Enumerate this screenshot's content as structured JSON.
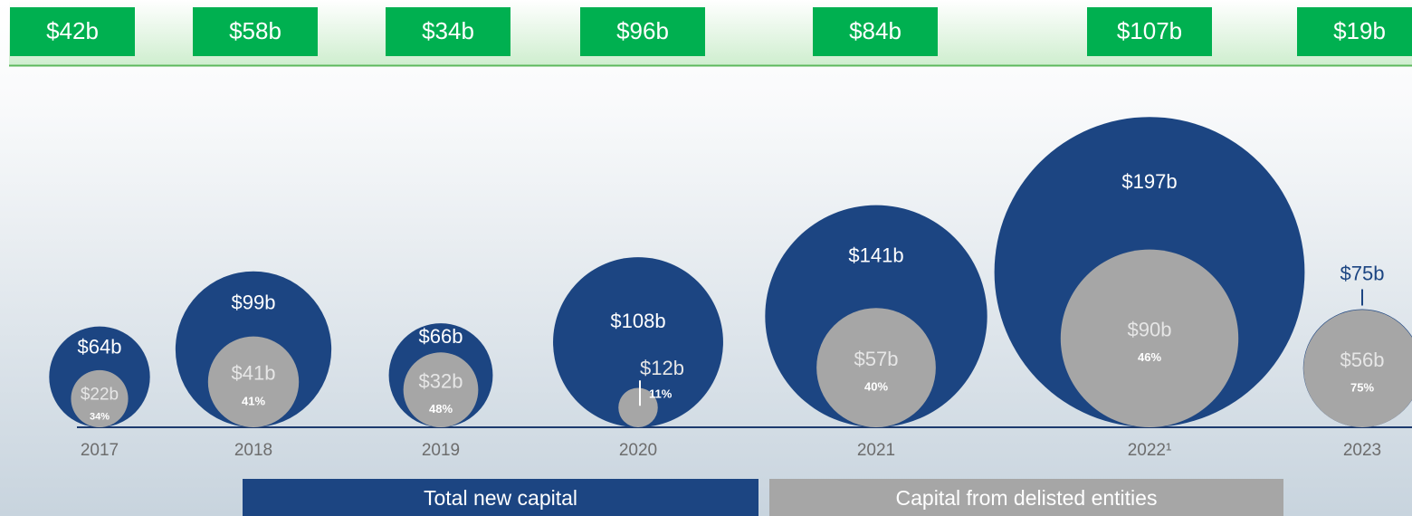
{
  "chart_data": {
    "type": "bubble",
    "categories": [
      "2017",
      "2018",
      "2019",
      "2020",
      "2021",
      "2022¹",
      "2023"
    ],
    "top_row": {
      "color": "#00b050",
      "values": [
        42,
        58,
        34,
        96,
        84,
        107,
        19
      ],
      "value_labels": [
        "$42b",
        "$58b",
        "$34b",
        "$96b",
        "$84b",
        "$107b",
        "$19b"
      ]
    },
    "series": [
      {
        "name": "Total new capital",
        "color": "#1c4582",
        "values": [
          64,
          99,
          66,
          108,
          141,
          197,
          75
        ],
        "value_labels": [
          "$64b",
          "$99b",
          "$66b",
          "$108b",
          "$141b",
          "$197b",
          "$75b"
        ]
      },
      {
        "name": "Capital from delisted entities",
        "color": "#a6a6a6",
        "values": [
          22,
          41,
          32,
          12,
          57,
          90,
          56
        ],
        "value_labels": [
          "$22b",
          "$41b",
          "$32b",
          "$12b",
          "$57b",
          "$90b",
          "$56b"
        ]
      }
    ],
    "shares": {
      "values": [
        34,
        41,
        48,
        11,
        40,
        46,
        75
      ],
      "value_labels": [
        "34%",
        "41%",
        "48%",
        "11%",
        "40%",
        "46%",
        "75%"
      ]
    }
  }
}
